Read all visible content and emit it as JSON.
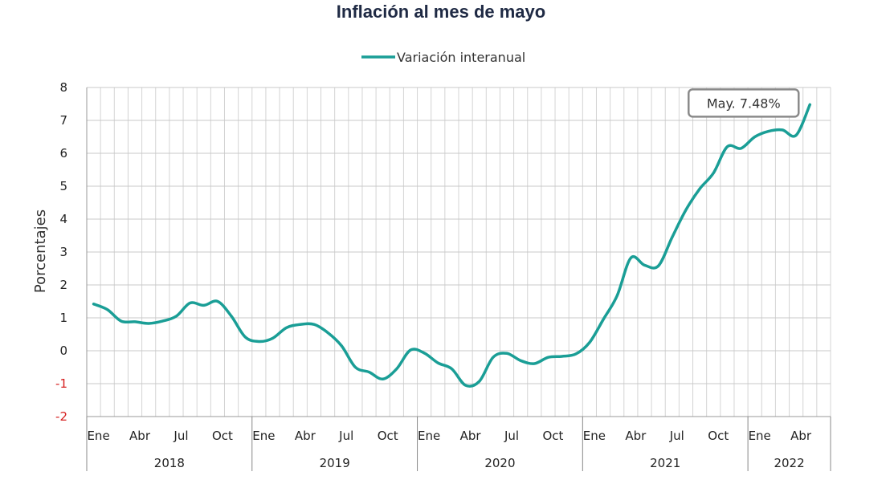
{
  "chart_data": {
    "type": "line",
    "title": "Inflación al mes de mayo",
    "ylabel": "Porcentajes",
    "xlabel": "",
    "ylim": [
      -2,
      8
    ],
    "yticks": [
      "-2",
      "-1",
      "0",
      "1",
      "2",
      "3",
      "4",
      "5",
      "6",
      "7",
      "8"
    ],
    "month_tick_labels": [
      "Ene",
      "Abr",
      "Jul",
      "Oct",
      "Ene",
      "Abr",
      "Jul",
      "Oct",
      "Ene",
      "Abr",
      "Jul",
      "Oct",
      "Ene",
      "Abr",
      "Jul",
      "Oct",
      "Ene",
      "Abr"
    ],
    "year_labels": [
      "2018",
      "2019",
      "2020",
      "2021",
      "2022"
    ],
    "grid": true,
    "legend_position": "top-center",
    "colors": {
      "series": "#1a9e96",
      "negative_tick": "#d62020",
      "annotation_border": "#8a8a8a"
    },
    "x": [
      "2018-01",
      "2018-02",
      "2018-03",
      "2018-04",
      "2018-05",
      "2018-06",
      "2018-07",
      "2018-08",
      "2018-09",
      "2018-10",
      "2018-11",
      "2018-12",
      "2019-01",
      "2019-02",
      "2019-03",
      "2019-04",
      "2019-05",
      "2019-06",
      "2019-07",
      "2019-08",
      "2019-09",
      "2019-10",
      "2019-11",
      "2019-12",
      "2020-01",
      "2020-02",
      "2020-03",
      "2020-04",
      "2020-05",
      "2020-06",
      "2020-07",
      "2020-08",
      "2020-09",
      "2020-10",
      "2020-11",
      "2020-12",
      "2021-01",
      "2021-02",
      "2021-03",
      "2021-04",
      "2021-05",
      "2021-06",
      "2021-07",
      "2021-08",
      "2021-09",
      "2021-10",
      "2021-11",
      "2021-12",
      "2022-01",
      "2022-02",
      "2022-03",
      "2022-04",
      "2022-05"
    ],
    "series": [
      {
        "name": "Variación interanual",
        "values": [
          1.42,
          1.25,
          0.9,
          0.88,
          0.83,
          0.9,
          1.05,
          1.45,
          1.38,
          1.5,
          1.05,
          0.42,
          0.28,
          0.38,
          0.7,
          0.8,
          0.8,
          0.55,
          0.15,
          -0.5,
          -0.65,
          -0.86,
          -0.55,
          0.02,
          -0.07,
          -0.37,
          -0.55,
          -1.05,
          -0.93,
          -0.2,
          -0.08,
          -0.3,
          -0.39,
          -0.2,
          -0.17,
          -0.1,
          0.25,
          0.95,
          1.67,
          2.82,
          2.6,
          2.58,
          3.45,
          4.28,
          4.92,
          5.4,
          6.2,
          6.15,
          6.5,
          6.67,
          6.71,
          6.55,
          7.48
        ]
      }
    ],
    "annotation": {
      "label": "May. 7.48%",
      "x": "2022-05",
      "y": 7.48
    }
  }
}
